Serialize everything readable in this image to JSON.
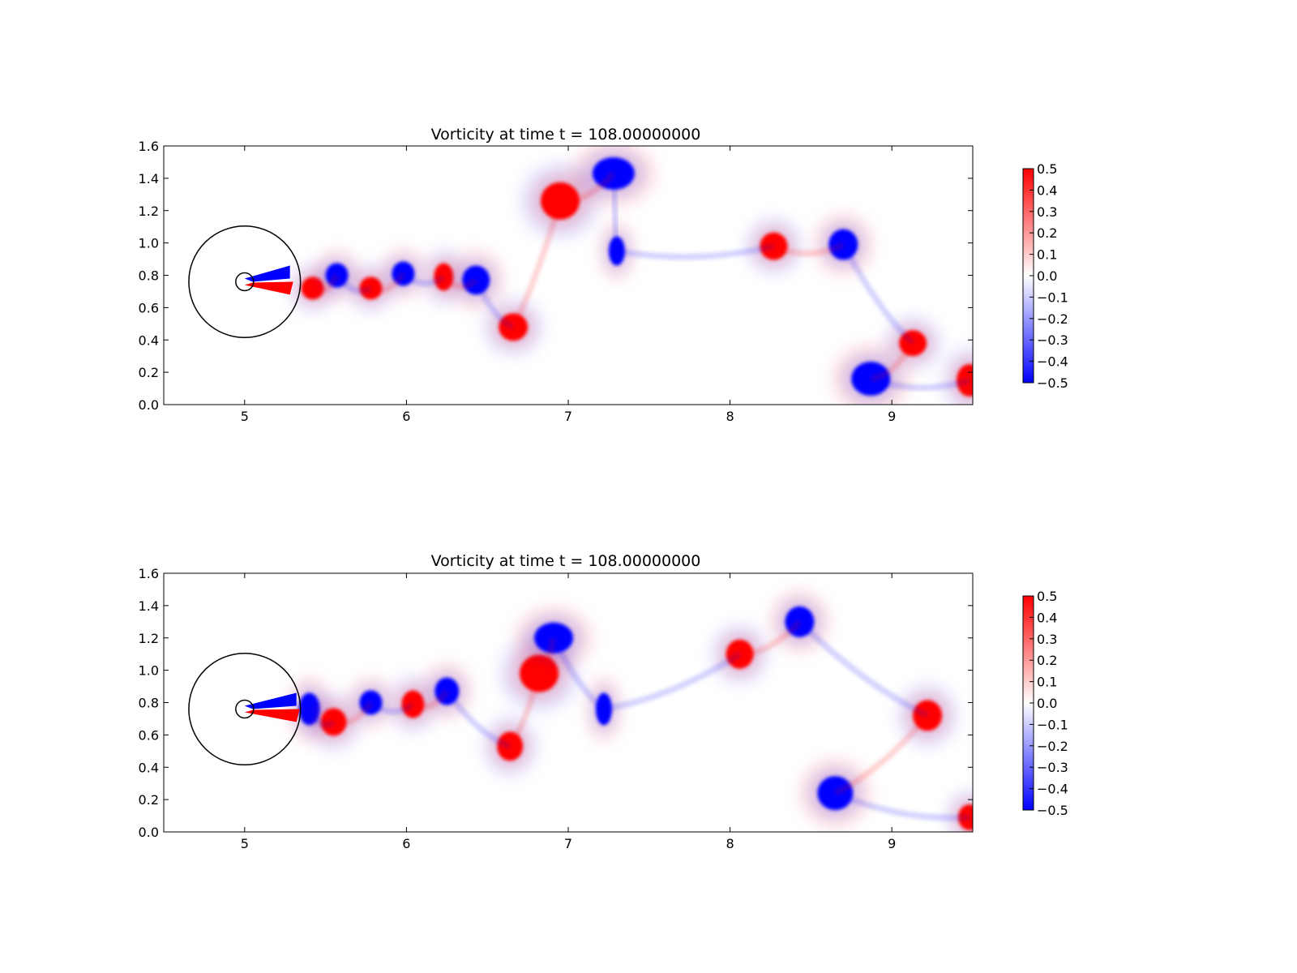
{
  "chart_data": [
    {
      "type": "heatmap",
      "title": "Vorticity at time t =   108.00000000",
      "xlabel": "",
      "ylabel": "",
      "xlim": [
        4.5,
        9.5
      ],
      "ylim": [
        0.0,
        1.6
      ],
      "x_ticks": [
        "5",
        "6",
        "7",
        "8",
        "9"
      ],
      "y_ticks": [
        "0.0",
        "0.2",
        "0.4",
        "0.6",
        "0.8",
        "1.0",
        "1.2",
        "1.4",
        "1.6"
      ],
      "colorbar": {
        "range": [
          -0.5,
          0.5
        ],
        "colors": [
          "#0000ff",
          "#ffffff",
          "#ff0000"
        ],
        "ticks": [
          "−0.5",
          "−0.4",
          "−0.3",
          "−0.2",
          "−0.1",
          "0.0",
          "0.1",
          "0.2",
          "0.3",
          "0.4",
          "0.5"
        ]
      },
      "circles": [
        {
          "cx": 5.0,
          "cy": 0.76,
          "r": 0.345
        },
        {
          "cx": 5.0,
          "cy": 0.76,
          "r": 0.055
        }
      ],
      "vortices": [
        {
          "x": 5.42,
          "y": 0.72,
          "rx": 0.07,
          "ry": 0.07,
          "value": 0.5
        },
        {
          "x": 5.57,
          "y": 0.8,
          "rx": 0.07,
          "ry": 0.075,
          "value": -0.5
        },
        {
          "x": 5.78,
          "y": 0.72,
          "rx": 0.07,
          "ry": 0.07,
          "value": 0.5
        },
        {
          "x": 5.98,
          "y": 0.81,
          "rx": 0.07,
          "ry": 0.075,
          "value": -0.5
        },
        {
          "x": 6.23,
          "y": 0.79,
          "rx": 0.06,
          "ry": 0.085,
          "value": 0.5
        },
        {
          "x": 6.43,
          "y": 0.77,
          "rx": 0.085,
          "ry": 0.09,
          "value": -0.5
        },
        {
          "x": 6.66,
          "y": 0.48,
          "rx": 0.09,
          "ry": 0.085,
          "value": 0.5
        },
        {
          "x": 6.95,
          "y": 1.26,
          "rx": 0.12,
          "ry": 0.115,
          "value": 0.5
        },
        {
          "x": 7.28,
          "y": 1.43,
          "rx": 0.13,
          "ry": 0.1,
          "value": -0.5
        },
        {
          "x": 7.3,
          "y": 0.95,
          "rx": 0.05,
          "ry": 0.09,
          "value": -0.5
        },
        {
          "x": 8.27,
          "y": 0.98,
          "rx": 0.085,
          "ry": 0.085,
          "value": 0.5
        },
        {
          "x": 8.7,
          "y": 0.99,
          "rx": 0.09,
          "ry": 0.095,
          "value": -0.5
        },
        {
          "x": 9.13,
          "y": 0.38,
          "rx": 0.085,
          "ry": 0.08,
          "value": 0.5
        },
        {
          "x": 8.87,
          "y": 0.16,
          "rx": 0.12,
          "ry": 0.105,
          "value": -0.5
        },
        {
          "x": 9.48,
          "y": 0.15,
          "rx": 0.08,
          "ry": 0.1,
          "value": 0.5
        }
      ]
    },
    {
      "type": "heatmap",
      "title": "Vorticity at time t =   108.00000000",
      "xlabel": "",
      "ylabel": "",
      "xlim": [
        4.5,
        9.5
      ],
      "ylim": [
        0.0,
        1.6
      ],
      "x_ticks": [
        "5",
        "6",
        "7",
        "8",
        "9"
      ],
      "y_ticks": [
        "0.0",
        "0.2",
        "0.4",
        "0.6",
        "0.8",
        "1.0",
        "1.2",
        "1.4",
        "1.6"
      ],
      "colorbar": {
        "range": [
          -0.5,
          0.5
        ],
        "colors": [
          "#0000ff",
          "#ffffff",
          "#ff0000"
        ],
        "ticks": [
          "−0.5",
          "−0.4",
          "−0.3",
          "−0.2",
          "−0.1",
          "0.0",
          "0.1",
          "0.2",
          "0.3",
          "0.4",
          "0.5"
        ]
      },
      "circles": [
        {
          "cx": 5.0,
          "cy": 0.76,
          "r": 0.345
        },
        {
          "cx": 5.0,
          "cy": 0.76,
          "r": 0.055
        }
      ],
      "vortices": [
        {
          "x": 5.4,
          "y": 0.76,
          "rx": 0.065,
          "ry": 0.1,
          "value": -0.5
        },
        {
          "x": 5.55,
          "y": 0.68,
          "rx": 0.08,
          "ry": 0.085,
          "value": 0.5
        },
        {
          "x": 5.78,
          "y": 0.8,
          "rx": 0.07,
          "ry": 0.075,
          "value": -0.5
        },
        {
          "x": 6.04,
          "y": 0.79,
          "rx": 0.07,
          "ry": 0.085,
          "value": 0.5
        },
        {
          "x": 6.25,
          "y": 0.87,
          "rx": 0.075,
          "ry": 0.085,
          "value": -0.5
        },
        {
          "x": 6.64,
          "y": 0.53,
          "rx": 0.08,
          "ry": 0.09,
          "value": 0.5
        },
        {
          "x": 6.82,
          "y": 0.98,
          "rx": 0.12,
          "ry": 0.115,
          "value": 0.5
        },
        {
          "x": 6.91,
          "y": 1.2,
          "rx": 0.12,
          "ry": 0.095,
          "value": -0.5
        },
        {
          "x": 7.22,
          "y": 0.76,
          "rx": 0.05,
          "ry": 0.1,
          "value": -0.5
        },
        {
          "x": 8.06,
          "y": 1.1,
          "rx": 0.085,
          "ry": 0.09,
          "value": 0.5
        },
        {
          "x": 8.43,
          "y": 1.3,
          "rx": 0.09,
          "ry": 0.095,
          "value": -0.5
        },
        {
          "x": 9.22,
          "y": 0.72,
          "rx": 0.09,
          "ry": 0.095,
          "value": 0.5
        },
        {
          "x": 8.65,
          "y": 0.24,
          "rx": 0.11,
          "ry": 0.105,
          "value": -0.5
        },
        {
          "x": 9.48,
          "y": 0.09,
          "rx": 0.07,
          "ry": 0.08,
          "value": 0.5
        }
      ]
    }
  ]
}
